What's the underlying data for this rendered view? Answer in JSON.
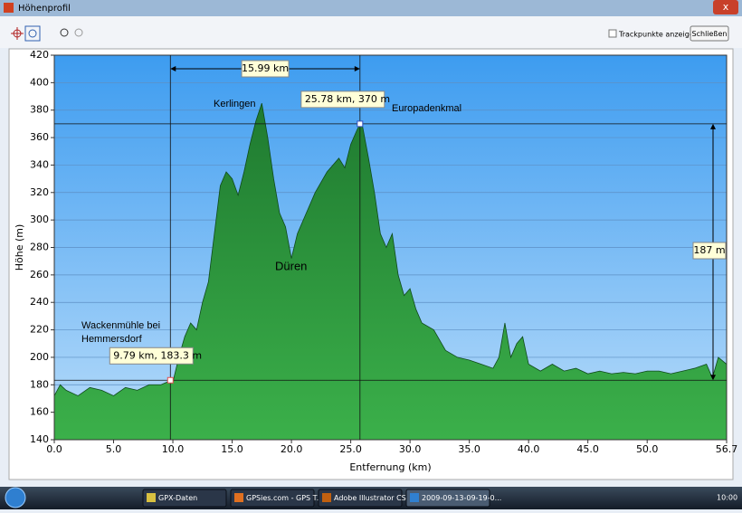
{
  "window": {
    "title": "Höhenprofil"
  },
  "toolbar": {
    "checkbox": "Trackpunkte anzeigen",
    "button": "Schließen"
  },
  "taskbar": {
    "items": [
      "GPX-Daten",
      "GPSies.com - GPS T...",
      "Adobe Illustrator CS...",
      "2009-09-13-09-19-0..."
    ],
    "clock": "10:00"
  },
  "chart_data": {
    "type": "area",
    "xlabel": "Entfernung  (km)",
    "ylabel": "Höhe (m)",
    "x": [
      0,
      0.5,
      1,
      2,
      3,
      4,
      5,
      6,
      7,
      8,
      9,
      9.79,
      10,
      10.5,
      11,
      11.5,
      12,
      12.5,
      13,
      13.5,
      14,
      14.5,
      15,
      15.5,
      16,
      16.5,
      17,
      17.5,
      18,
      18.5,
      19,
      19.5,
      20,
      20.5,
      21,
      22,
      23,
      24,
      24.5,
      25,
      25.5,
      25.78,
      26,
      26.5,
      27,
      27.5,
      28,
      28.5,
      29,
      29.5,
      30,
      30.5,
      31,
      32,
      33,
      34,
      35,
      36,
      37,
      37.5,
      38,
      38.5,
      39,
      39.5,
      40,
      41,
      42,
      43,
      44,
      45,
      46,
      47,
      48,
      49,
      50,
      51,
      52,
      53,
      54,
      55,
      55.5,
      56,
      56.7
    ],
    "series": [
      {
        "name": "Höhe",
        "color": "#2a8a3a",
        "values": [
          172,
          180,
          176,
          172,
          178,
          176,
          172,
          178,
          176,
          180,
          180,
          183,
          182,
          200,
          215,
          225,
          220,
          240,
          255,
          290,
          325,
          335,
          330,
          318,
          335,
          355,
          372,
          385,
          360,
          330,
          305,
          295,
          272,
          290,
          300,
          320,
          335,
          345,
          338,
          355,
          365,
          370,
          368,
          345,
          320,
          290,
          280,
          290,
          260,
          245,
          250,
          235,
          225,
          220,
          205,
          200,
          198,
          195,
          192,
          200,
          225,
          200,
          210,
          215,
          195,
          190,
          195,
          190,
          192,
          188,
          190,
          188,
          189,
          188,
          190,
          190,
          188,
          190,
          192,
          195,
          185,
          200,
          195
        ]
      }
    ],
    "xlim": [
      0,
      56.7
    ],
    "ylim": [
      140,
      420
    ],
    "xticks": [
      {
        "value": 0,
        "label": "0.0"
      },
      {
        "value": 5,
        "label": "5.0"
      },
      {
        "value": 10,
        "label": "10.0"
      },
      {
        "value": 15,
        "label": "15.0"
      },
      {
        "value": 20,
        "label": "20.0"
      },
      {
        "value": 25,
        "label": "25.0"
      },
      {
        "value": 30,
        "label": "30.0"
      },
      {
        "value": 35,
        "label": "35.0"
      },
      {
        "value": 40,
        "label": "40.0"
      },
      {
        "value": 45,
        "label": "45.0"
      },
      {
        "value": 50,
        "label": "50.0"
      },
      56.7
    ],
    "yticks": [
      140,
      160,
      180,
      200,
      220,
      240,
      260,
      280,
      300,
      320,
      340,
      360,
      380,
      400,
      420
    ],
    "grid": true,
    "markers": [
      {
        "x": 9.79,
        "y": 183.3,
        "label": "9.79 km, 183.3 m",
        "color": "#e05050"
      },
      {
        "x": 25.78,
        "y": 370,
        "label": "25.78 km, 370 m",
        "color": "#3050c0"
      }
    ],
    "distance": {
      "value": 15.99,
      "label": "15.99 km"
    },
    "height_diff": {
      "value": 187,
      "label": "187 m"
    },
    "places": [
      "Kerlingen",
      "Europadenkmal",
      "Düren",
      "Wackenmühle bei",
      "Hemmersdorf"
    ]
  }
}
